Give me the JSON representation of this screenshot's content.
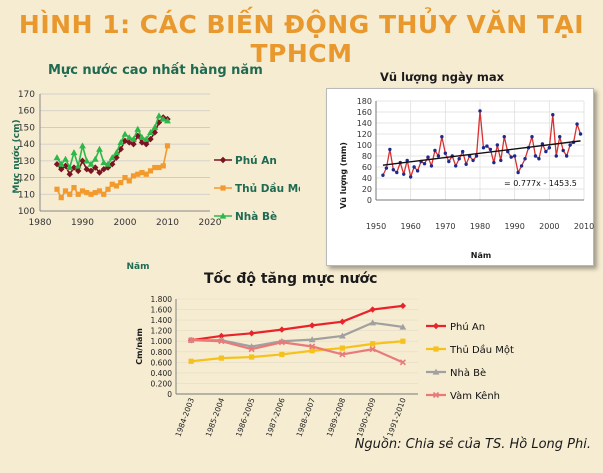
{
  "page_title": "HÌNH 1: CÁC BIẾN ĐỘNG THỦY VĂN TẠI TPHCM",
  "source": "Nguồn: Chia sẻ của TS. Hồ Long Phi.",
  "colors": {
    "title": "#e8982c",
    "background": "#f6ecd2",
    "chart1_title": "#1f6b52"
  },
  "chart_data": [
    {
      "type": "line",
      "title": "Mực nước cao nhất hàng năm",
      "xlabel": "Năm",
      "ylabel": "Mực nước (cm)",
      "xlim": [
        1980,
        2020
      ],
      "ylim": [
        100,
        170
      ],
      "xticks": [
        "1980",
        "1990",
        "2000",
        "2010",
        "2020"
      ],
      "yticks": [
        "100",
        "110",
        "120",
        "130",
        "140",
        "150",
        "160",
        "170"
      ],
      "grid": true,
      "legend_position": "right",
      "x": [
        1984,
        1985,
        1986,
        1987,
        1988,
        1989,
        1990,
        1991,
        1992,
        1993,
        1994,
        1995,
        1996,
        1997,
        1998,
        1999,
        2000,
        2001,
        2002,
        2003,
        2004,
        2005,
        2006,
        2007,
        2008,
        2009,
        2010
      ],
      "series": [
        {
          "name": "Phú An",
          "color": "#7a1420",
          "values": [
            128,
            125,
            127,
            122,
            126,
            124,
            130,
            125,
            124,
            126,
            123,
            125,
            126,
            128,
            132,
            137,
            142,
            141,
            140,
            145,
            141,
            140,
            143,
            147,
            153,
            156,
            155
          ]
        },
        {
          "name": "Thủ Dầu Một",
          "color": "#f39a2d",
          "values": [
            113,
            108,
            112,
            110,
            114,
            110,
            112,
            111,
            110,
            111,
            112,
            110,
            113,
            116,
            115,
            117,
            120,
            118,
            121,
            122,
            123,
            122,
            124,
            126,
            126,
            127,
            139
          ]
        },
        {
          "name": "Nhà Bè",
          "color": "#2db84a",
          "values": [
            132,
            128,
            131,
            126,
            135,
            127,
            139,
            130,
            128,
            131,
            137,
            129,
            128,
            132,
            135,
            141,
            146,
            144,
            143,
            149,
            144,
            143,
            147,
            150,
            157,
            155,
            154
          ]
        }
      ]
    },
    {
      "type": "line",
      "title": "Vũ lượng ngày max",
      "xlabel": "Năm",
      "ylabel": "Vũ lượng (mm)",
      "xlim": [
        1950,
        2010
      ],
      "ylim": [
        0,
        180
      ],
      "xticks": [
        "1950",
        "1960",
        "1970",
        "1980",
        "1990",
        "2000",
        "2010"
      ],
      "yticks": [
        "0",
        "20",
        "40",
        "60",
        "80",
        "100",
        "120",
        "140",
        "160",
        "180"
      ],
      "grid": true,
      "trendline_label": "= 0.777x - 1453.5",
      "trend": {
        "slope": 0.777,
        "intercept": -1453.5
      },
      "x": [
        1952,
        1953,
        1954,
        1955,
        1956,
        1957,
        1958,
        1959,
        1960,
        1961,
        1962,
        1963,
        1964,
        1965,
        1966,
        1967,
        1968,
        1969,
        1970,
        1971,
        1972,
        1973,
        1974,
        1975,
        1976,
        1977,
        1978,
        1979,
        1980,
        1981,
        1982,
        1983,
        1984,
        1985,
        1986,
        1987,
        1988,
        1989,
        1990,
        1991,
        1992,
        1993,
        1994,
        1995,
        1996,
        1997,
        1998,
        1999,
        2000,
        2001,
        2002,
        2003,
        2004,
        2005,
        2006,
        2007,
        2008,
        2009
      ],
      "series": [
        {
          "name": "",
          "color": "#d93030",
          "marker_color": "#1c2a8c",
          "values": [
            45,
            58,
            92,
            55,
            50,
            68,
            47,
            72,
            42,
            60,
            53,
            70,
            66,
            78,
            62,
            90,
            80,
            115,
            85,
            70,
            80,
            62,
            75,
            88,
            65,
            80,
            72,
            80,
            162,
            95,
            98,
            92,
            68,
            100,
            72,
            115,
            88,
            78,
            80,
            50,
            62,
            75,
            95,
            115,
            80,
            75,
            102,
            88,
            95,
            155,
            80,
            115,
            90,
            80,
            100,
            105,
            138,
            120
          ]
        }
      ]
    },
    {
      "type": "line",
      "title": "Tốc độ tăng mực nước",
      "xlabel": "",
      "ylabel": "Cm/năm",
      "ylim": [
        0,
        1.8
      ],
      "yticks": [
        "0",
        "0.200",
        "0.400",
        "0.600",
        "0.800",
        "1.000",
        "1.200",
        "1.400",
        "1.600",
        "1.800"
      ],
      "categories": [
        "1984-2003",
        "1985-2004",
        "1986-2005",
        "1987-2006",
        "1988-2007",
        "1989-2008",
        "1990-2009",
        "1991-2010"
      ],
      "legend_position": "right",
      "series": [
        {
          "name": "Phú An",
          "color": "#e8242a",
          "values": [
            1.02,
            1.1,
            1.15,
            1.22,
            1.3,
            1.37,
            1.6,
            1.67
          ]
        },
        {
          "name": "Thủ Dầu Một",
          "color": "#f5c21b",
          "values": [
            0.62,
            0.68,
            0.7,
            0.75,
            0.82,
            0.87,
            0.95,
            1.0
          ]
        },
        {
          "name": "Nhà Bè",
          "color": "#a0a0a0",
          "values": [
            1.02,
            1.02,
            0.9,
            1.0,
            1.03,
            1.1,
            1.35,
            1.27
          ]
        },
        {
          "name": "Vàm Kênh",
          "color": "#e87a7a",
          "values": [
            1.02,
            1.0,
            0.85,
            0.98,
            0.9,
            0.75,
            0.85,
            0.6
          ]
        }
      ]
    }
  ]
}
